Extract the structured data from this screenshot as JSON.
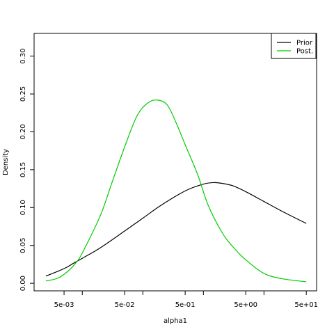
{
  "chart_data": {
    "type": "line",
    "xlabel": "alpha1",
    "ylabel": "Density",
    "x_scale": "log",
    "xlim": [
      0.0016,
      74
    ],
    "ylim": [
      -0.01,
      0.33
    ],
    "x_tick_labels": [
      {
        "value": 0.005,
        "label": "5e-03"
      },
      {
        "value": 0.05,
        "label": "5e-02"
      },
      {
        "value": 0.5,
        "label": "5e-01"
      },
      {
        "value": 5,
        "label": "5e+00"
      },
      {
        "value": 50,
        "label": "5e+01"
      }
    ],
    "x_minor_ticks": [
      0.01,
      0.1,
      1,
      10
    ],
    "y_ticks": [
      {
        "value": 0.0,
        "label": "0.00"
      },
      {
        "value": 0.05,
        "label": "0.05"
      },
      {
        "value": 0.1,
        "label": "0.10"
      },
      {
        "value": 0.15,
        "label": "0.15"
      },
      {
        "value": 0.2,
        "label": "0.20"
      },
      {
        "value": 0.25,
        "label": "0.25"
      },
      {
        "value": 0.3,
        "label": "0.30"
      }
    ],
    "legend": {
      "position": "top-right",
      "entries": [
        "Prior",
        "Post."
      ]
    },
    "series": [
      {
        "name": "Prior",
        "color": "#000000",
        "x": [
          0.0025,
          0.004,
          0.0055,
          0.007,
          0.01,
          0.02,
          0.05,
          0.1,
          0.2,
          0.5,
          1,
          1.5,
          2,
          3,
          5,
          10,
          20,
          50
        ],
        "y": [
          0.0095,
          0.016,
          0.021,
          0.026,
          0.033,
          0.047,
          0.069,
          0.086,
          0.103,
          0.122,
          0.131,
          0.133,
          0.132,
          0.129,
          0.121,
          0.108,
          0.095,
          0.079
        ]
      },
      {
        "name": "Post.",
        "color": "#00cc00",
        "x": [
          0.0025,
          0.004,
          0.006,
          0.008,
          0.01,
          0.02,
          0.03,
          0.05,
          0.08,
          0.12,
          0.17,
          0.25,
          0.35,
          0.5,
          0.8,
          1.2,
          2,
          3,
          5,
          10,
          20,
          50
        ],
        "y": [
          0.003,
          0.007,
          0.017,
          0.028,
          0.04,
          0.09,
          0.13,
          0.18,
          0.221,
          0.238,
          0.242,
          0.236,
          0.213,
          0.183,
          0.144,
          0.103,
          0.068,
          0.049,
          0.031,
          0.013,
          0.006,
          0.002
        ]
      }
    ]
  }
}
